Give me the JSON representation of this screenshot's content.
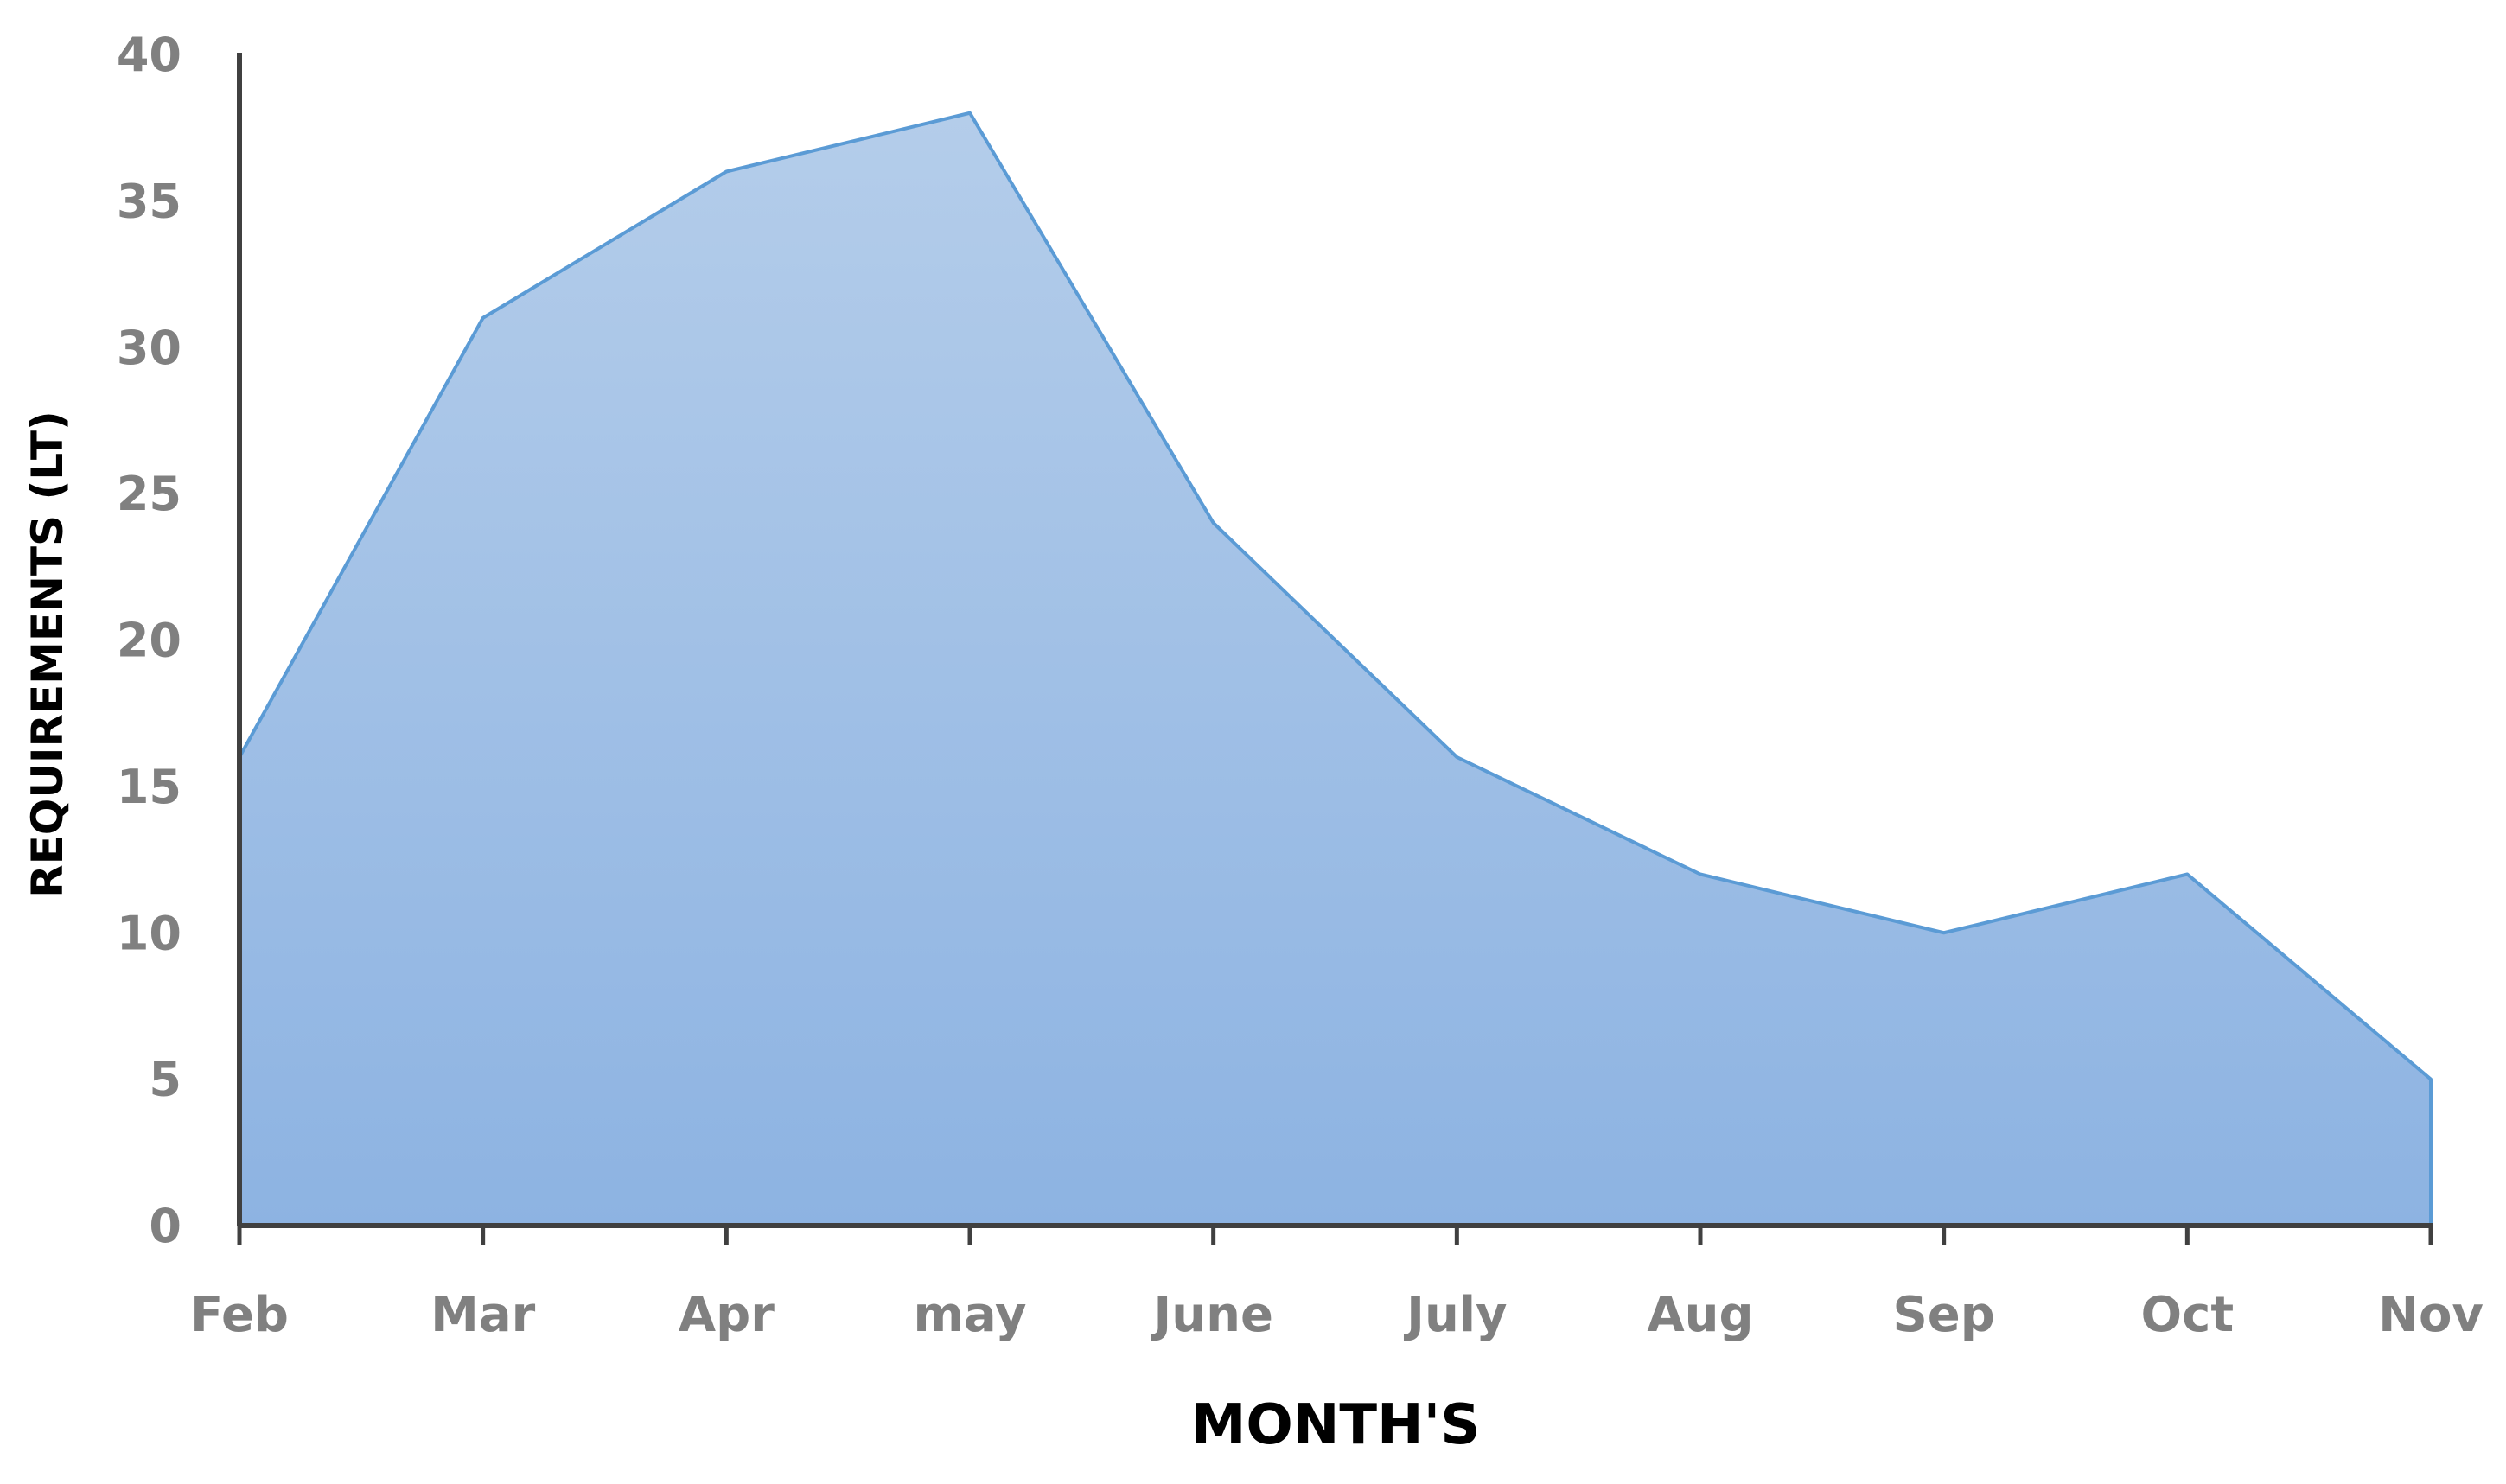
{
  "chart_data": {
    "type": "area",
    "categories": [
      "Feb",
      "Mar",
      "Apr",
      "may",
      "June",
      "July",
      "Aug",
      "Sep",
      "Oct",
      "Nov"
    ],
    "values": [
      16,
      31,
      36,
      38,
      24,
      16,
      12,
      10,
      12,
      5
    ],
    "xlabel": "MONTH'S",
    "ylabel": "REQUIREMENTS (LT)",
    "ylim": [
      0,
      40
    ],
    "yticks": [
      "0",
      "5",
      "10",
      "15",
      "20",
      "25",
      "30",
      "35",
      "40"
    ],
    "grid": false,
    "legend": "none",
    "colors": {
      "fill_top": "#b4cdea",
      "fill_bottom": "#8db3e2",
      "line": "#5b9bd5",
      "axis": "#404040",
      "tick_label": "#808080"
    }
  }
}
